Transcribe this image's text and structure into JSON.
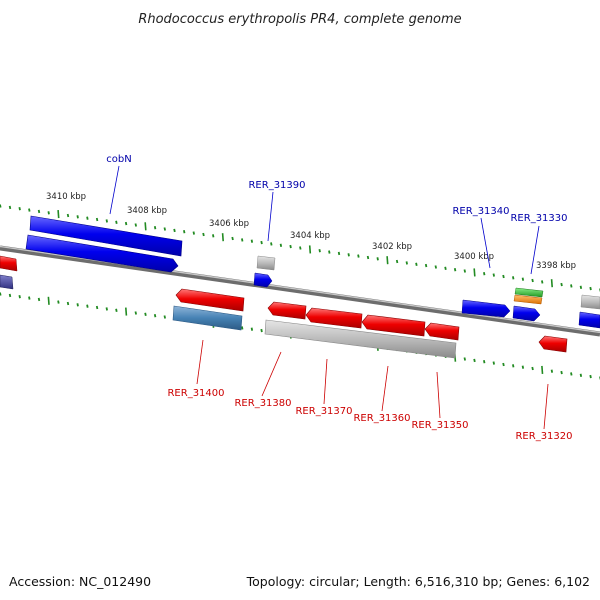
{
  "title": "Rhodococcus erythropolis PR4, complete genome",
  "footer": {
    "accession": "Accession: NC_012490",
    "summary": "Topology: circular; Length: 6,516,310 bp; Genes: 6,102"
  },
  "scale_labels": [
    "3410 kbp",
    "3408 kbp",
    "3406 kbp",
    "3404 kbp",
    "3402 kbp",
    "3400 kbp",
    "3398 kbp"
  ],
  "gene_labels": {
    "forward": [
      "cobN",
      "RER_31390",
      "RER_31340",
      "RER_31330"
    ],
    "reverse": [
      "RER_31400",
      "RER_31380",
      "RER_31370",
      "RER_31360",
      "RER_31350",
      "RER_31320"
    ]
  },
  "colors": {
    "forward_gene": "#0000ee",
    "reverse_gene": "#ee0000",
    "steelblue_gene": "#4682b4",
    "gray_gene": "#bbbbbb",
    "green_gene": "#33bb33",
    "orange_gene": "#ff8c00",
    "backbone": "#888888",
    "tick": "#228b22",
    "forward_label": "#0000aa",
    "reverse_label": "#cc0000"
  }
}
